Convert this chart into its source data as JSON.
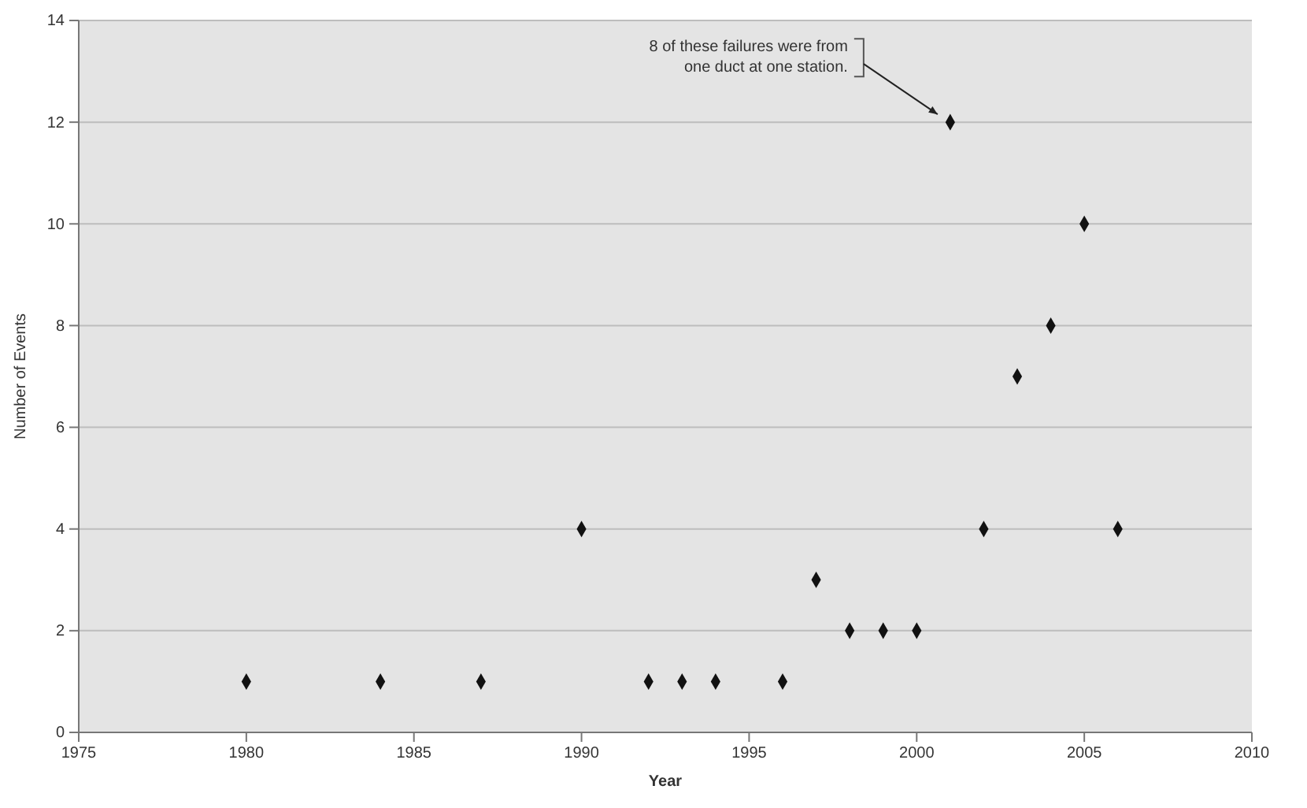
{
  "chart_data": {
    "type": "scatter",
    "xlabel": "Year",
    "ylabel": "Number of Events",
    "x": [
      1980,
      1984,
      1987,
      1990,
      1992,
      1993,
      1994,
      1996,
      1997,
      1998,
      1999,
      2000,
      2001,
      2002,
      2003,
      2004,
      2005,
      2006
    ],
    "values": [
      1,
      1,
      1,
      4,
      1,
      1,
      1,
      1,
      3,
      2,
      2,
      2,
      12,
      4,
      7,
      8,
      10,
      4
    ],
    "color": "#111111",
    "marker": "diamond",
    "grid": "y",
    "xlim": [
      1975,
      2010
    ],
    "xticks": [
      1975,
      1980,
      1985,
      1990,
      1995,
      2000,
      2005,
      2010
    ],
    "ylim": [
      0,
      14
    ],
    "yticks": [
      0,
      2,
      4,
      6,
      8,
      10,
      12,
      14
    ],
    "annotations": [
      "8 of these failures were from\none duct at one station."
    ]
  }
}
